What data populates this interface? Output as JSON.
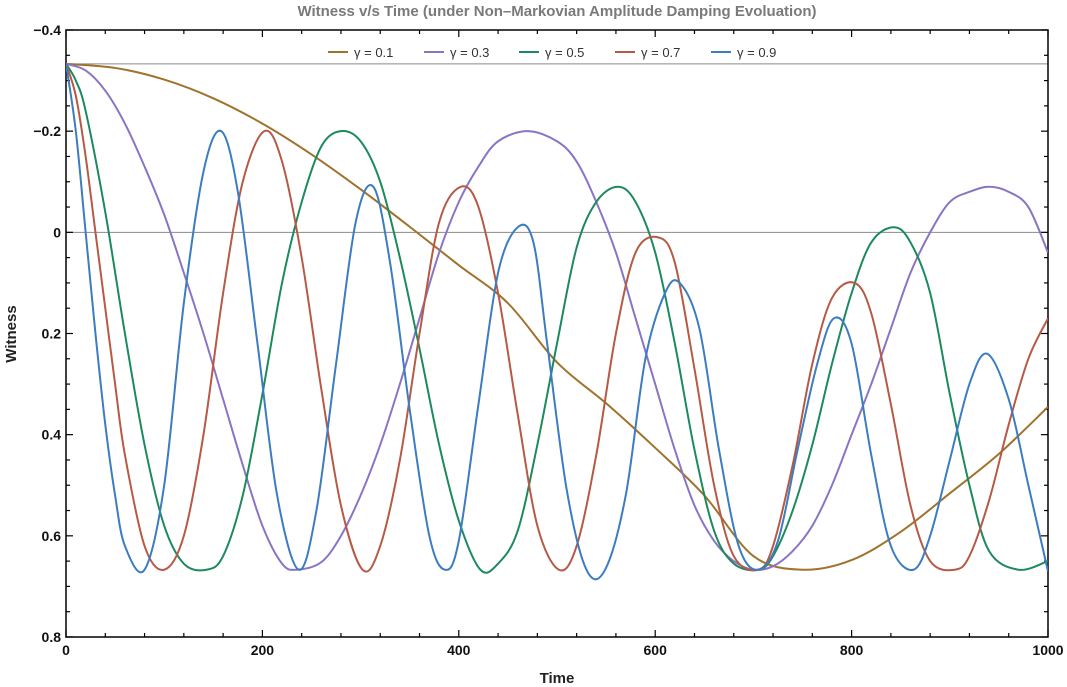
{
  "chart_data": {
    "type": "line",
    "title": "Witness v/s Time (under Non–Markovian Amplitude Damping Evoluation)",
    "xlabel": "Time",
    "ylabel": "Witness",
    "xlim": [
      0,
      1000
    ],
    "ylim": [
      -0.4,
      0.8
    ],
    "y_reversed": true,
    "x_ticks": [
      0,
      200,
      400,
      600,
      800,
      1000
    ],
    "x_tick_labels": [
      "0",
      "200",
      "400",
      "600",
      "800",
      "1000"
    ],
    "y_ticks": [
      -0.4,
      -0.2,
      0,
      0.2,
      0.4,
      0.6,
      0.8
    ],
    "y_tick_labels": [
      "−0.4",
      "−0.2",
      "0",
      "0.2",
      "0.4",
      "0.6",
      "0.8"
    ],
    "reference_lines": [
      -0.333,
      0
    ],
    "legend_position": "top",
    "series": [
      {
        "name": "γ = 0.1",
        "color": "#A0732D",
        "x": [
          0,
          50,
          100,
          150,
          200,
          250,
          300,
          350,
          400,
          450,
          500,
          550,
          600,
          650,
          700,
          750,
          800,
          850,
          900,
          950,
          1000
        ],
        "y": [
          -0.333,
          -0.325,
          -0.302,
          -0.265,
          -0.215,
          -0.154,
          -0.085,
          -0.011,
          0.065,
          0.14,
          0.257,
          0.338,
          0.426,
          0.52,
          0.64,
          0.667,
          0.648,
          0.592,
          0.516,
          0.438,
          0.345
        ]
      },
      {
        "name": "γ = 0.3",
        "color": "#8A74C4",
        "x": [
          0,
          20,
          40,
          60,
          80,
          100,
          120,
          140,
          160,
          180,
          200,
          220,
          235,
          260,
          280,
          300,
          320,
          340,
          360,
          380,
          400,
          420,
          440,
          470,
          500,
          520,
          540,
          560,
          580,
          600,
          620,
          640,
          660,
          680,
          700,
          720,
          740,
          760,
          780,
          800,
          820,
          840,
          860,
          880,
          900,
          920,
          940,
          960,
          980,
          1000
        ],
        "y": [
          -0.333,
          -0.32,
          -0.28,
          -0.215,
          -0.13,
          -0.035,
          0.08,
          0.2,
          0.33,
          0.46,
          0.58,
          0.655,
          0.667,
          0.652,
          0.6,
          0.52,
          0.42,
          0.3,
          0.17,
          0.04,
          -0.06,
          -0.13,
          -0.18,
          -0.2,
          -0.18,
          -0.14,
          -0.06,
          0.04,
          0.17,
          0.3,
          0.43,
          0.54,
          0.61,
          0.65,
          0.667,
          0.66,
          0.63,
          0.58,
          0.5,
          0.4,
          0.3,
          0.19,
          0.08,
          0.0,
          -0.06,
          -0.08,
          -0.09,
          -0.08,
          -0.05,
          0.04
        ]
      },
      {
        "name": "γ = 0.5",
        "color": "#1D8A5E",
        "x": [
          0,
          10,
          20,
          40,
          60,
          80,
          100,
          120,
          143,
          160,
          180,
          200,
          220,
          240,
          260,
          280,
          300,
          320,
          340,
          360,
          380,
          400,
          422,
          440,
          460,
          480,
          500,
          520,
          540,
          562,
          580,
          600,
          620,
          640,
          660,
          680,
          705,
          720,
          740,
          760,
          780,
          800,
          820,
          843,
          860,
          880,
          900,
          920,
          940,
          970,
          1000
        ],
        "y": [
          -0.333,
          -0.3,
          -0.24,
          -0.04,
          0.2,
          0.42,
          0.58,
          0.655,
          0.667,
          0.64,
          0.52,
          0.32,
          0.1,
          -0.06,
          -0.17,
          -0.2,
          -0.18,
          -0.1,
          0.05,
          0.23,
          0.42,
          0.57,
          0.667,
          0.655,
          0.59,
          0.42,
          0.22,
          0.03,
          -0.06,
          -0.09,
          -0.06,
          0.04,
          0.22,
          0.43,
          0.59,
          0.655,
          0.667,
          0.64,
          0.55,
          0.42,
          0.26,
          0.12,
          0.02,
          -0.01,
          0.02,
          0.12,
          0.32,
          0.5,
          0.63,
          0.667,
          0.65
        ]
      },
      {
        "name": "γ = 0.7",
        "color": "#B65A46",
        "x": [
          0,
          10,
          20,
          30,
          40,
          50,
          60,
          80,
          100,
          120,
          140,
          160,
          180,
          202,
          220,
          240,
          260,
          280,
          302,
          320,
          340,
          360,
          380,
          402,
          420,
          440,
          460,
          480,
          502,
          520,
          540,
          560,
          580,
          603,
          620,
          640,
          660,
          680,
          705,
          720,
          740,
          760,
          780,
          803,
          820,
          840,
          860,
          880,
          905,
          920,
          940,
          960,
          980,
          1000
        ],
        "y": [
          -0.333,
          -0.27,
          -0.15,
          0.0,
          0.15,
          0.3,
          0.44,
          0.62,
          0.667,
          0.6,
          0.4,
          0.12,
          -0.1,
          -0.2,
          -0.14,
          0.05,
          0.31,
          0.54,
          0.667,
          0.62,
          0.45,
          0.2,
          -0.02,
          -0.09,
          -0.05,
          0.12,
          0.36,
          0.58,
          0.667,
          0.62,
          0.44,
          0.2,
          0.04,
          0.01,
          0.06,
          0.27,
          0.5,
          0.64,
          0.667,
          0.62,
          0.46,
          0.26,
          0.13,
          0.1,
          0.16,
          0.34,
          0.54,
          0.65,
          0.667,
          0.64,
          0.53,
          0.38,
          0.25,
          0.17
        ]
      },
      {
        "name": "γ = 0.9",
        "color": "#3C7CC0",
        "x": [
          0,
          10,
          20,
          30,
          40,
          50,
          60,
          80,
          100,
          120,
          140,
          158,
          175,
          195,
          215,
          237,
          255,
          275,
          295,
          313,
          330,
          350,
          370,
          386,
          400,
          420,
          440,
          460,
          476,
          490,
          510,
          530,
          549,
          570,
          590,
          610,
          625,
          645,
          665,
          685,
          705,
          725,
          745,
          765,
          782,
          800,
          820,
          840,
          863,
          880,
          900,
          920,
          938,
          960,
          980,
          1000
        ],
        "y": [
          -0.333,
          -0.2,
          0.0,
          0.2,
          0.38,
          0.52,
          0.62,
          0.667,
          0.5,
          0.14,
          -0.12,
          -0.2,
          -0.08,
          0.22,
          0.52,
          0.667,
          0.55,
          0.26,
          -0.02,
          -0.09,
          0.06,
          0.35,
          0.6,
          0.667,
          0.61,
          0.34,
          0.08,
          -0.01,
          0.02,
          0.22,
          0.51,
          0.667,
          0.667,
          0.52,
          0.25,
          0.12,
          0.1,
          0.19,
          0.43,
          0.62,
          0.667,
          0.61,
          0.43,
          0.26,
          0.17,
          0.22,
          0.44,
          0.62,
          0.667,
          0.6,
          0.45,
          0.3,
          0.24,
          0.33,
          0.5,
          0.67
        ]
      }
    ]
  }
}
